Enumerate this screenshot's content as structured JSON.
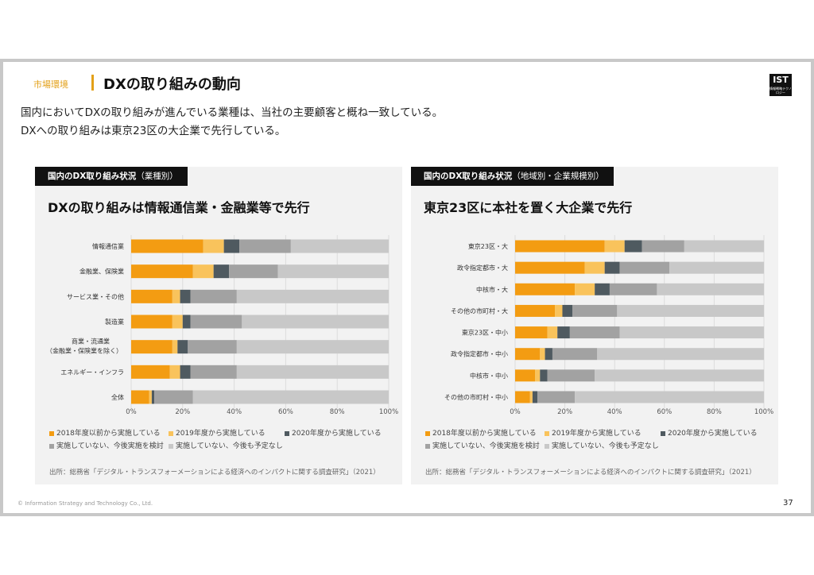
{
  "header": {
    "section": "市場環境",
    "title": "DXの取り組みの動向",
    "logo_text": "IST",
    "logo_sub": "情報戦略テクノロジー"
  },
  "lead": [
    "国内においてDXの取り組みが進んでいる業種は、当社の主要顧客と概ね一致している。",
    "DXへの取り組みは東京23区の大企業で先行している。"
  ],
  "colors": [
    "#f39c12",
    "#f9c35c",
    "#4f5a60",
    "#a2a2a2",
    "#c8c8c8"
  ],
  "legend": [
    "2018年度以前から実施している",
    "2019年度から実施している",
    "2020年度から実施している",
    "実施していない、今後実施を検討",
    "実施していない、今後も予定なし"
  ],
  "source": "出所：総務省「デジタル・トランスフォーメーションによる経済へのインパクトに関する調査研究」（2021）",
  "footer": "© Information Strategy and Technology Co., Ltd.",
  "page_number": "37",
  "chart_data": [
    {
      "type": "bar",
      "orientation": "horizontal",
      "stacked": true,
      "tab_main": "国内のDX取り組み状況",
      "tab_sub": "（業種別）",
      "title": "DXの取り組みは情報通信業・金融業等で先行",
      "x_ticks": [
        "0%",
        "20%",
        "40%",
        "60%",
        "80%",
        "100%"
      ],
      "xlim": [
        0,
        100
      ],
      "legend_position": "bottom",
      "categories": [
        [
          "情報通信業"
        ],
        [
          "金融業、保険業"
        ],
        [
          "サービス業・その他"
        ],
        [
          "製造業"
        ],
        [
          "商業・流通業",
          "（金融業・保険業を除く）"
        ],
        [
          "エネルギー・インフラ"
        ],
        [
          "全体"
        ]
      ],
      "series": [
        {
          "name": "2018年度以前から実施している",
          "values": [
            28,
            24,
            16,
            16,
            16,
            15,
            7
          ]
        },
        {
          "name": "2019年度から実施している",
          "values": [
            8,
            8,
            3,
            4,
            2,
            4,
            1
          ]
        },
        {
          "name": "2020年度から実施している",
          "values": [
            6,
            6,
            4,
            3,
            4,
            4,
            1
          ]
        },
        {
          "name": "実施していない、今後実施を検討",
          "values": [
            20,
            19,
            18,
            20,
            19,
            18,
            15
          ]
        },
        {
          "name": "実施していない、今後も予定なし",
          "values": [
            38,
            43,
            59,
            57,
            59,
            59,
            76
          ]
        }
      ]
    },
    {
      "type": "bar",
      "orientation": "horizontal",
      "stacked": true,
      "tab_main": "国内のDX取り組み状況",
      "tab_sub": "（地域別・企業規模別）",
      "title": "東京23区に本社を置く大企業で先行",
      "x_ticks": [
        "0%",
        "20%",
        "40%",
        "60%",
        "80%",
        "100%"
      ],
      "xlim": [
        0,
        100
      ],
      "legend_position": "bottom",
      "categories": [
        [
          "東京23区・大"
        ],
        [
          "政令指定都市・大"
        ],
        [
          "中核市・大"
        ],
        [
          "その他の市町村・大"
        ],
        [
          "東京23区・中小"
        ],
        [
          "政令指定都市・中小"
        ],
        [
          "中核市・中小"
        ],
        [
          "その他の市町村・中小"
        ]
      ],
      "series": [
        {
          "name": "2018年度以前から実施している",
          "values": [
            36,
            28,
            24,
            16,
            13,
            10,
            8,
            6
          ]
        },
        {
          "name": "2019年度から実施している",
          "values": [
            8,
            8,
            8,
            3,
            4,
            2,
            2,
            1
          ]
        },
        {
          "name": "2020年度から実施している",
          "values": [
            7,
            6,
            6,
            4,
            5,
            3,
            3,
            2
          ]
        },
        {
          "name": "実施していない、今後実施を検討",
          "values": [
            17,
            20,
            19,
            18,
            20,
            18,
            19,
            15
          ]
        },
        {
          "name": "実施していない、今後も予定なし",
          "values": [
            32,
            38,
            43,
            59,
            58,
            67,
            68,
            76
          ]
        }
      ]
    }
  ]
}
